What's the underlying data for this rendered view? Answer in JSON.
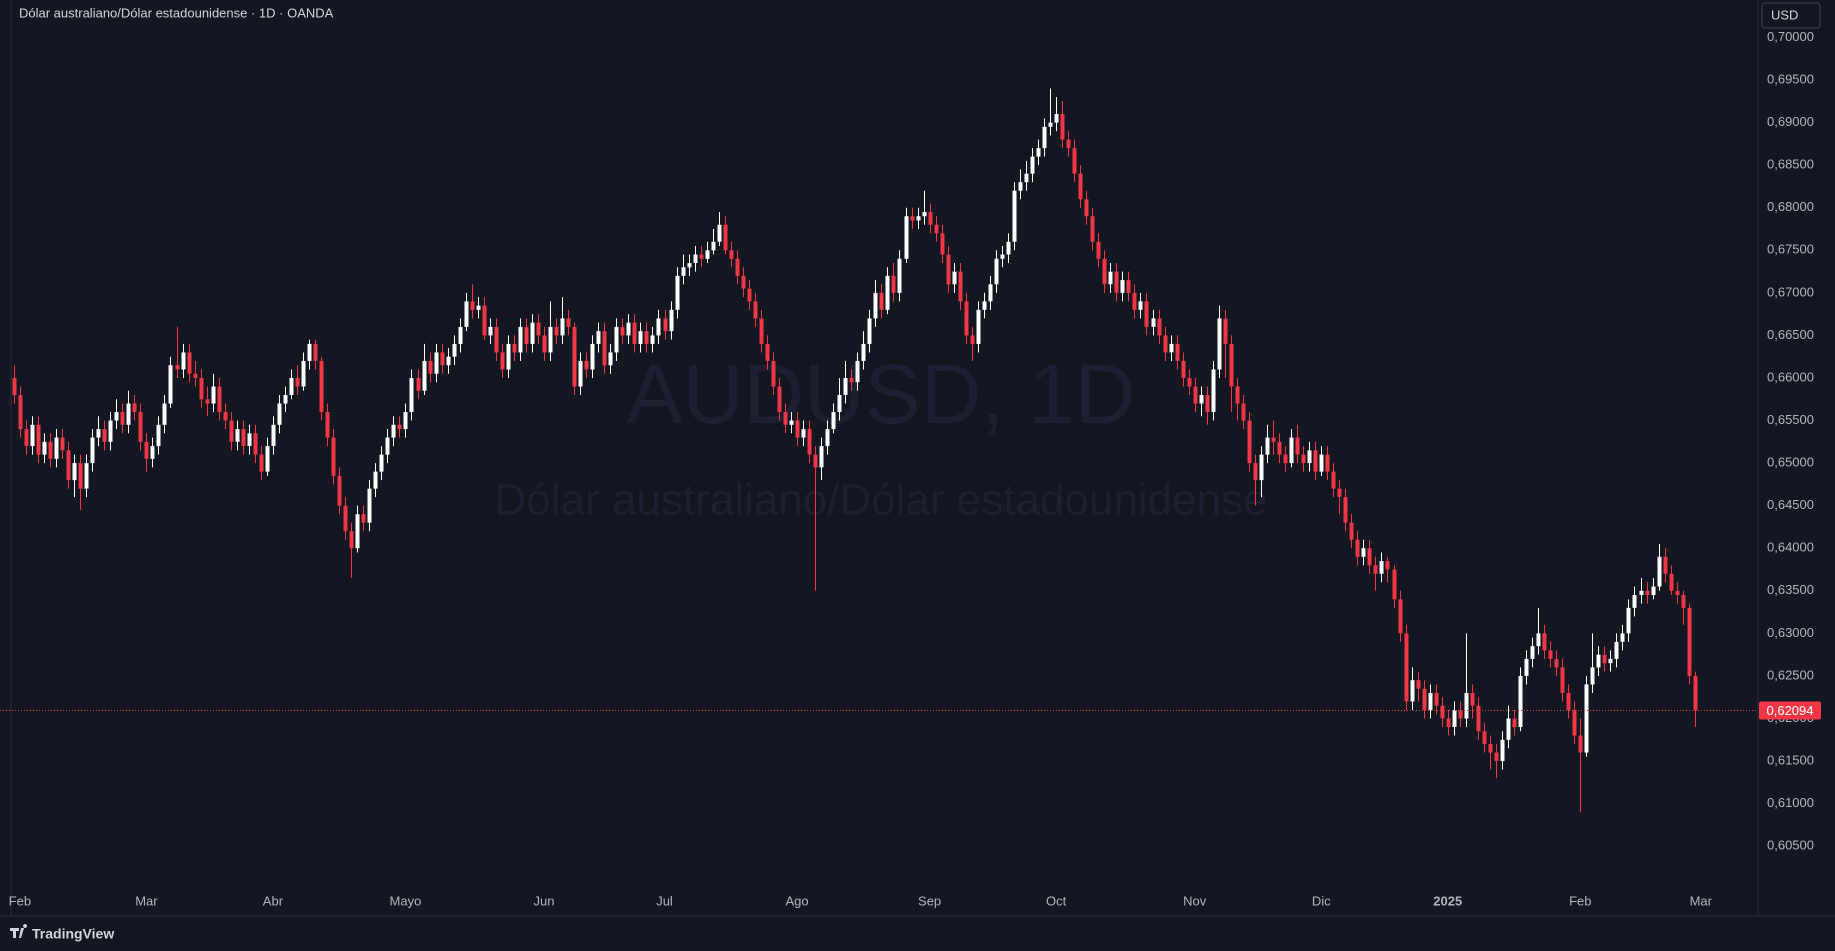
{
  "chart_data": {
    "type": "candlestick",
    "title": "Dólar australiano/Dólar estadounidense · 1D · OANDA",
    "watermark_symbol": "AUDUSD, 1D",
    "watermark_name": "Dólar australiano/Dólar estadounidense",
    "currency": "USD",
    "brand": "TradingView",
    "up_color": "#ffffff",
    "down_color": "#f23645",
    "grid": false,
    "xlim": [
      -2.3,
      289.5
    ],
    "ylim": [
      0.5968,
      0.7044
    ],
    "xticks": [
      {
        "value": 1,
        "label": "Feb"
      },
      {
        "value": 22,
        "label": "Mar"
      },
      {
        "value": 43,
        "label": "Abr"
      },
      {
        "value": 65,
        "label": "Mayo"
      },
      {
        "value": 88,
        "label": "Jun"
      },
      {
        "value": 108,
        "label": "Jul"
      },
      {
        "value": 130,
        "label": "Ago"
      },
      {
        "value": 152,
        "label": "Sep"
      },
      {
        "value": 173,
        "label": "Oct"
      },
      {
        "value": 196,
        "label": "Nov"
      },
      {
        "value": 217,
        "label": "Dic"
      },
      {
        "value": 238,
        "label": "2025"
      },
      {
        "value": 260,
        "label": "Feb"
      },
      {
        "value": 280,
        "label": "Mar"
      }
    ],
    "yticks": [
      {
        "value": 0.605,
        "label": "0,60500"
      },
      {
        "value": 0.61,
        "label": "0,61000"
      },
      {
        "value": 0.615,
        "label": "0,61500"
      },
      {
        "value": 0.62,
        "label": "0,62000"
      },
      {
        "value": 0.625,
        "label": "0,62500"
      },
      {
        "value": 0.63,
        "label": "0,63000"
      },
      {
        "value": 0.635,
        "label": "0,63500"
      },
      {
        "value": 0.64,
        "label": "0,64000"
      },
      {
        "value": 0.645,
        "label": "0,64500"
      },
      {
        "value": 0.65,
        "label": "0,65000"
      },
      {
        "value": 0.655,
        "label": "0,65500"
      },
      {
        "value": 0.66,
        "label": "0,66000"
      },
      {
        "value": 0.665,
        "label": "0,66500"
      },
      {
        "value": 0.67,
        "label": "0,67000"
      },
      {
        "value": 0.675,
        "label": "0,67500"
      },
      {
        "value": 0.68,
        "label": "0,68000"
      },
      {
        "value": 0.685,
        "label": "0,68500"
      },
      {
        "value": 0.69,
        "label": "0,69000"
      },
      {
        "value": 0.695,
        "label": "0,69500"
      },
      {
        "value": 0.7,
        "label": "0,70000"
      }
    ],
    "last_close_label": "0,62094",
    "open": [
      0.66,
      0.658,
      0.654,
      0.652,
      0.6545,
      0.651,
      0.6525,
      0.6505,
      0.653,
      0.6515,
      0.648,
      0.65,
      0.647,
      0.65,
      0.653,
      0.654,
      0.6525,
      0.655,
      0.656,
      0.6545,
      0.657,
      0.656,
      0.6525,
      0.6505,
      0.652,
      0.6545,
      0.657,
      0.6615,
      0.661,
      0.663,
      0.6605,
      0.66,
      0.6575,
      0.657,
      0.659,
      0.656,
      0.655,
      0.6525,
      0.654,
      0.652,
      0.6535,
      0.651,
      0.649,
      0.652,
      0.6545,
      0.657,
      0.658,
      0.66,
      0.659,
      0.662,
      0.664,
      0.662,
      0.656,
      0.653,
      0.6485,
      0.645,
      0.642,
      0.64,
      0.644,
      0.643,
      0.647,
      0.649,
      0.651,
      0.653,
      0.6545,
      0.654,
      0.656,
      0.66,
      0.6585,
      0.662,
      0.6605,
      0.663,
      0.6615,
      0.6625,
      0.664,
      0.666,
      0.669,
      0.668,
      0.6685,
      0.665,
      0.666,
      0.663,
      0.661,
      0.664,
      0.663,
      0.666,
      0.664,
      0.6665,
      0.665,
      0.663,
      0.666,
      0.665,
      0.667,
      0.666,
      0.659,
      0.662,
      0.661,
      0.664,
      0.6655,
      0.6615,
      0.663,
      0.666,
      0.665,
      0.6665,
      0.664,
      0.6655,
      0.664,
      0.665,
      0.667,
      0.6655,
      0.668,
      0.672,
      0.673,
      0.6735,
      0.6745,
      0.674,
      0.675,
      0.676,
      0.678,
      0.675,
      0.674,
      0.672,
      0.6705,
      0.669,
      0.667,
      0.664,
      0.662,
      0.659,
      0.656,
      0.6545,
      0.655,
      0.653,
      0.654,
      0.651,
      0.6495,
      0.652,
      0.654,
      0.656,
      0.658,
      0.66,
      0.6595,
      0.662,
      0.664,
      0.667,
      0.67,
      0.668,
      0.672,
      0.67,
      0.674,
      0.679,
      0.6785,
      0.679,
      0.6795,
      0.678,
      0.677,
      0.6745,
      0.671,
      0.6725,
      0.669,
      0.665,
      0.664,
      0.668,
      0.669,
      0.671,
      0.674,
      0.6745,
      0.676,
      0.682,
      0.683,
      0.684,
      0.686,
      0.687,
      0.6895,
      0.69,
      0.691,
      0.688,
      0.687,
      0.684,
      0.681,
      0.679,
      0.676,
      0.674,
      0.671,
      0.6725,
      0.67,
      0.6715,
      0.67,
      0.668,
      0.669,
      0.666,
      0.667,
      0.665,
      0.663,
      0.664,
      0.662,
      0.66,
      0.659,
      0.657,
      0.658,
      0.656,
      0.661,
      0.667,
      0.664,
      0.659,
      0.657,
      0.655,
      0.65,
      0.648,
      0.651,
      0.653,
      0.6525,
      0.651,
      0.65,
      0.653,
      0.651,
      0.65,
      0.6515,
      0.649,
      0.651,
      0.649,
      0.647,
      0.646,
      0.643,
      0.641,
      0.639,
      0.64,
      0.638,
      0.637,
      0.6385,
      0.6375,
      0.634,
      0.63,
      0.622,
      0.6245,
      0.6235,
      0.621,
      0.623,
      0.6215,
      0.62,
      0.619,
      0.621,
      0.62,
      0.623,
      0.6215,
      0.6185,
      0.617,
      0.616,
      0.615,
      0.6175,
      0.62,
      0.619,
      0.625,
      0.627,
      0.6285,
      0.63,
      0.628,
      0.627,
      0.626,
      0.623,
      0.621,
      0.618,
      0.616,
      0.624,
      0.626,
      0.6275,
      0.6265,
      0.627,
      0.629,
      0.63,
      0.633,
      0.6345,
      0.635,
      0.6345,
      0.6355,
      0.639,
      0.637,
      0.635,
      0.6345,
      0.633,
      0.625
    ],
    "high": [
      0.6615,
      0.659,
      0.655,
      0.6555,
      0.6555,
      0.6535,
      0.6535,
      0.654,
      0.654,
      0.6525,
      0.651,
      0.651,
      0.651,
      0.654,
      0.6555,
      0.655,
      0.656,
      0.6575,
      0.657,
      0.6585,
      0.658,
      0.657,
      0.6535,
      0.653,
      0.6555,
      0.658,
      0.6625,
      0.666,
      0.664,
      0.664,
      0.662,
      0.661,
      0.659,
      0.6605,
      0.66,
      0.657,
      0.656,
      0.655,
      0.655,
      0.6545,
      0.6545,
      0.652,
      0.653,
      0.6555,
      0.658,
      0.659,
      0.661,
      0.6615,
      0.663,
      0.6645,
      0.6645,
      0.6625,
      0.657,
      0.654,
      0.6495,
      0.646,
      0.643,
      0.645,
      0.645,
      0.648,
      0.65,
      0.652,
      0.654,
      0.6555,
      0.6555,
      0.657,
      0.661,
      0.661,
      0.664,
      0.663,
      0.664,
      0.664,
      0.6635,
      0.665,
      0.667,
      0.67,
      0.671,
      0.6695,
      0.6695,
      0.667,
      0.667,
      0.664,
      0.665,
      0.665,
      0.667,
      0.667,
      0.6675,
      0.6675,
      0.666,
      0.669,
      0.667,
      0.6695,
      0.668,
      0.6665,
      0.663,
      0.663,
      0.665,
      0.6665,
      0.6665,
      0.664,
      0.667,
      0.667,
      0.6675,
      0.6675,
      0.6665,
      0.6665,
      0.666,
      0.668,
      0.668,
      0.669,
      0.673,
      0.6745,
      0.6745,
      0.6755,
      0.6755,
      0.676,
      0.6775,
      0.6795,
      0.679,
      0.676,
      0.675,
      0.673,
      0.6715,
      0.67,
      0.668,
      0.665,
      0.663,
      0.66,
      0.657,
      0.656,
      0.656,
      0.655,
      0.655,
      0.652,
      0.653,
      0.655,
      0.657,
      0.66,
      0.662,
      0.661,
      0.663,
      0.6655,
      0.668,
      0.6715,
      0.671,
      0.673,
      0.6735,
      0.675,
      0.68,
      0.68,
      0.68,
      0.682,
      0.6805,
      0.679,
      0.678,
      0.6755,
      0.6735,
      0.6735,
      0.67,
      0.666,
      0.669,
      0.67,
      0.672,
      0.675,
      0.6755,
      0.677,
      0.683,
      0.6845,
      0.6855,
      0.687,
      0.688,
      0.6905,
      0.694,
      0.693,
      0.6925,
      0.689,
      0.688,
      0.685,
      0.682,
      0.68,
      0.677,
      0.675,
      0.6735,
      0.6735,
      0.6725,
      0.6725,
      0.671,
      0.67,
      0.67,
      0.668,
      0.668,
      0.666,
      0.665,
      0.665,
      0.663,
      0.661,
      0.66,
      0.659,
      0.659,
      0.662,
      0.6685,
      0.668,
      0.665,
      0.66,
      0.658,
      0.656,
      0.651,
      0.652,
      0.6545,
      0.655,
      0.6535,
      0.652,
      0.654,
      0.6545,
      0.652,
      0.6525,
      0.6525,
      0.652,
      0.652,
      0.65,
      0.648,
      0.647,
      0.644,
      0.642,
      0.641,
      0.641,
      0.639,
      0.6395,
      0.639,
      0.638,
      0.635,
      0.631,
      0.626,
      0.6255,
      0.6245,
      0.624,
      0.624,
      0.6225,
      0.621,
      0.622,
      0.622,
      0.63,
      0.624,
      0.6225,
      0.6195,
      0.618,
      0.617,
      0.6185,
      0.6215,
      0.621,
      0.626,
      0.628,
      0.6295,
      0.633,
      0.631,
      0.629,
      0.628,
      0.627,
      0.624,
      0.622,
      0.62,
      0.625,
      0.63,
      0.6285,
      0.6285,
      0.628,
      0.63,
      0.631,
      0.634,
      0.6355,
      0.6365,
      0.636,
      0.6365,
      0.6405,
      0.64,
      0.638,
      0.636,
      0.635,
      0.6335,
      0.6255
    ],
    "low": [
      0.657,
      0.653,
      0.651,
      0.651,
      0.65,
      0.65,
      0.6495,
      0.6495,
      0.6505,
      0.647,
      0.646,
      0.6445,
      0.646,
      0.649,
      0.652,
      0.6515,
      0.6515,
      0.654,
      0.6535,
      0.6535,
      0.655,
      0.6515,
      0.649,
      0.6495,
      0.651,
      0.6535,
      0.6565,
      0.66,
      0.66,
      0.6595,
      0.659,
      0.6565,
      0.6555,
      0.656,
      0.655,
      0.654,
      0.6515,
      0.6515,
      0.651,
      0.651,
      0.65,
      0.648,
      0.6485,
      0.651,
      0.6535,
      0.656,
      0.6575,
      0.658,
      0.6585,
      0.661,
      0.661,
      0.655,
      0.652,
      0.6475,
      0.644,
      0.641,
      0.6365,
      0.6395,
      0.642,
      0.642,
      0.646,
      0.648,
      0.65,
      0.652,
      0.653,
      0.653,
      0.655,
      0.6575,
      0.658,
      0.6595,
      0.6595,
      0.6605,
      0.6605,
      0.6615,
      0.663,
      0.6655,
      0.667,
      0.667,
      0.6645,
      0.664,
      0.662,
      0.66,
      0.66,
      0.662,
      0.662,
      0.663,
      0.663,
      0.664,
      0.662,
      0.662,
      0.664,
      0.664,
      0.665,
      0.658,
      0.658,
      0.66,
      0.66,
      0.663,
      0.6605,
      0.6605,
      0.662,
      0.664,
      0.664,
      0.663,
      0.663,
      0.663,
      0.663,
      0.664,
      0.6645,
      0.6645,
      0.667,
      0.671,
      0.672,
      0.6725,
      0.673,
      0.6735,
      0.6745,
      0.6755,
      0.6745,
      0.673,
      0.671,
      0.6695,
      0.668,
      0.666,
      0.663,
      0.661,
      0.658,
      0.655,
      0.6535,
      0.6535,
      0.652,
      0.652,
      0.65,
      0.635,
      0.648,
      0.651,
      0.6535,
      0.655,
      0.657,
      0.6585,
      0.6585,
      0.661,
      0.663,
      0.666,
      0.667,
      0.6675,
      0.669,
      0.669,
      0.6735,
      0.6775,
      0.6775,
      0.678,
      0.677,
      0.676,
      0.6735,
      0.67,
      0.67,
      0.668,
      0.664,
      0.662,
      0.663,
      0.667,
      0.668,
      0.67,
      0.673,
      0.6735,
      0.675,
      0.681,
      0.682,
      0.683,
      0.685,
      0.686,
      0.6885,
      0.689,
      0.687,
      0.686,
      0.683,
      0.68,
      0.678,
      0.675,
      0.673,
      0.67,
      0.67,
      0.669,
      0.669,
      0.669,
      0.667,
      0.667,
      0.665,
      0.665,
      0.664,
      0.662,
      0.662,
      0.661,
      0.659,
      0.658,
      0.656,
      0.6555,
      0.6545,
      0.655,
      0.66,
      0.66,
      0.656,
      0.655,
      0.654,
      0.649,
      0.645,
      0.646,
      0.65,
      0.651,
      0.65,
      0.649,
      0.6495,
      0.65,
      0.649,
      0.649,
      0.648,
      0.6485,
      0.648,
      0.646,
      0.644,
      0.642,
      0.64,
      0.638,
      0.638,
      0.637,
      0.635,
      0.636,
      0.636,
      0.633,
      0.629,
      0.621,
      0.621,
      0.622,
      0.62,
      0.62,
      0.6205,
      0.619,
      0.618,
      0.618,
      0.619,
      0.619,
      0.62,
      0.6175,
      0.616,
      0.614,
      0.613,
      0.614,
      0.6165,
      0.618,
      0.6185,
      0.624,
      0.626,
      0.6275,
      0.627,
      0.626,
      0.625,
      0.622,
      0.62,
      0.617,
      0.609,
      0.6155,
      0.623,
      0.625,
      0.6255,
      0.6255,
      0.626,
      0.628,
      0.629,
      0.632,
      0.6335,
      0.6335,
      0.634,
      0.635,
      0.636,
      0.6345,
      0.6335,
      0.631,
      0.624,
      0.619
    ],
    "close": [
      0.658,
      0.654,
      0.652,
      0.6545,
      0.651,
      0.6525,
      0.6505,
      0.653,
      0.6515,
      0.648,
      0.65,
      0.647,
      0.65,
      0.653,
      0.654,
      0.6525,
      0.655,
      0.656,
      0.6545,
      0.657,
      0.656,
      0.6525,
      0.6505,
      0.652,
      0.6545,
      0.657,
      0.6615,
      0.661,
      0.663,
      0.6605,
      0.66,
      0.6575,
      0.657,
      0.659,
      0.656,
      0.655,
      0.6525,
      0.654,
      0.652,
      0.6535,
      0.651,
      0.649,
      0.652,
      0.6545,
      0.657,
      0.658,
      0.66,
      0.659,
      0.662,
      0.664,
      0.662,
      0.656,
      0.653,
      0.6485,
      0.645,
      0.642,
      0.64,
      0.644,
      0.643,
      0.647,
      0.649,
      0.651,
      0.653,
      0.6545,
      0.654,
      0.656,
      0.66,
      0.6585,
      0.662,
      0.6605,
      0.663,
      0.6615,
      0.6625,
      0.664,
      0.666,
      0.669,
      0.668,
      0.6685,
      0.665,
      0.666,
      0.663,
      0.661,
      0.664,
      0.663,
      0.666,
      0.664,
      0.6665,
      0.665,
      0.663,
      0.666,
      0.665,
      0.667,
      0.666,
      0.659,
      0.662,
      0.661,
      0.664,
      0.6655,
      0.6615,
      0.663,
      0.666,
      0.665,
      0.6665,
      0.664,
      0.6655,
      0.664,
      0.665,
      0.667,
      0.6655,
      0.668,
      0.672,
      0.673,
      0.6735,
      0.6745,
      0.674,
      0.675,
      0.676,
      0.678,
      0.675,
      0.674,
      0.672,
      0.6705,
      0.669,
      0.667,
      0.664,
      0.662,
      0.659,
      0.656,
      0.6545,
      0.655,
      0.653,
      0.654,
      0.651,
      0.6495,
      0.652,
      0.654,
      0.656,
      0.658,
      0.66,
      0.6595,
      0.662,
      0.664,
      0.667,
      0.67,
      0.668,
      0.672,
      0.67,
      0.674,
      0.679,
      0.6785,
      0.679,
      0.6795,
      0.678,
      0.677,
      0.6745,
      0.671,
      0.6725,
      0.669,
      0.665,
      0.664,
      0.668,
      0.669,
      0.671,
      0.674,
      0.6745,
      0.676,
      0.682,
      0.683,
      0.684,
      0.686,
      0.687,
      0.6895,
      0.69,
      0.691,
      0.688,
      0.687,
      0.684,
      0.681,
      0.679,
      0.676,
      0.674,
      0.671,
      0.6725,
      0.67,
      0.6715,
      0.67,
      0.668,
      0.669,
      0.666,
      0.667,
      0.665,
      0.663,
      0.664,
      0.662,
      0.66,
      0.659,
      0.657,
      0.658,
      0.656,
      0.661,
      0.667,
      0.664,
      0.659,
      0.657,
      0.655,
      0.65,
      0.648,
      0.651,
      0.653,
      0.6525,
      0.651,
      0.65,
      0.653,
      0.651,
      0.65,
      0.6515,
      0.649,
      0.651,
      0.649,
      0.647,
      0.646,
      0.643,
      0.641,
      0.639,
      0.64,
      0.638,
      0.637,
      0.6385,
      0.6375,
      0.634,
      0.63,
      0.622,
      0.6245,
      0.6235,
      0.621,
      0.623,
      0.6215,
      0.62,
      0.619,
      0.621,
      0.62,
      0.623,
      0.6215,
      0.6185,
      0.617,
      0.616,
      0.615,
      0.6175,
      0.62,
      0.619,
      0.625,
      0.627,
      0.6285,
      0.63,
      0.628,
      0.627,
      0.626,
      0.623,
      0.621,
      0.618,
      0.616,
      0.624,
      0.626,
      0.6275,
      0.6265,
      0.627,
      0.629,
      0.63,
      0.633,
      0.6345,
      0.635,
      0.6345,
      0.6355,
      0.639,
      0.637,
      0.635,
      0.6345,
      0.633,
      0.625,
      0.62094
    ]
  }
}
